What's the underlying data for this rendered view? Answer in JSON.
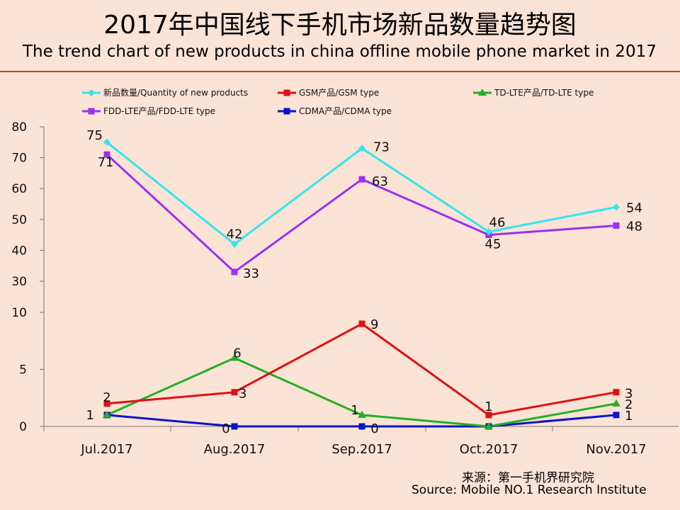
{
  "title": "2017年中国线下手机市场新品数量趋势图",
  "subtitle": "The trend chart of new products in china offline mobile phone market in 2017",
  "source_cn": "来源：第一手机界研究院",
  "source_en": "Source: Mobile NO.1 Research Institute",
  "colors": {
    "background": "#FBE3D6",
    "title_rule": "#D9352A"
  },
  "chart_data": {
    "type": "line",
    "categories": [
      "Jul.2017",
      "Aug.2017",
      "Sep.2017",
      "Oct.2017",
      "Nov.2017"
    ],
    "grid": false,
    "legend_position": "top",
    "panels": [
      {
        "ylim": [
          30,
          80
        ],
        "yticks": [
          "30",
          "40",
          "50",
          "60",
          "70",
          "80"
        ],
        "series": [
          {
            "name": "新品数量/Quantity of new products",
            "color": "#33E5EE",
            "marker": "diamond",
            "values": [
              75,
              42,
              73,
              46,
              54
            ]
          },
          {
            "name": "FDD-LTE产品/FDD-LTE type",
            "color": "#9B30F0",
            "marker": "square",
            "values": [
              71,
              33,
              63,
              45,
              48
            ]
          }
        ]
      },
      {
        "ylim": [
          0,
          10
        ],
        "yticks": [
          "0",
          "5",
          "10"
        ],
        "series": [
          {
            "name": "GSM产品/GSM type",
            "color": "#E01010",
            "marker": "square",
            "values": [
              2,
              3,
              9,
              1,
              3
            ]
          },
          {
            "name": "TD-LTE产品/TD-LTE type",
            "color": "#22B022",
            "marker": "triangle",
            "values": [
              1,
              6,
              1,
              0,
              2
            ]
          },
          {
            "name": "CDMA产品/CDMA type",
            "color": "#0A14C8",
            "marker": "square",
            "values": [
              1,
              0,
              0,
              0,
              1
            ]
          }
        ]
      }
    ]
  }
}
